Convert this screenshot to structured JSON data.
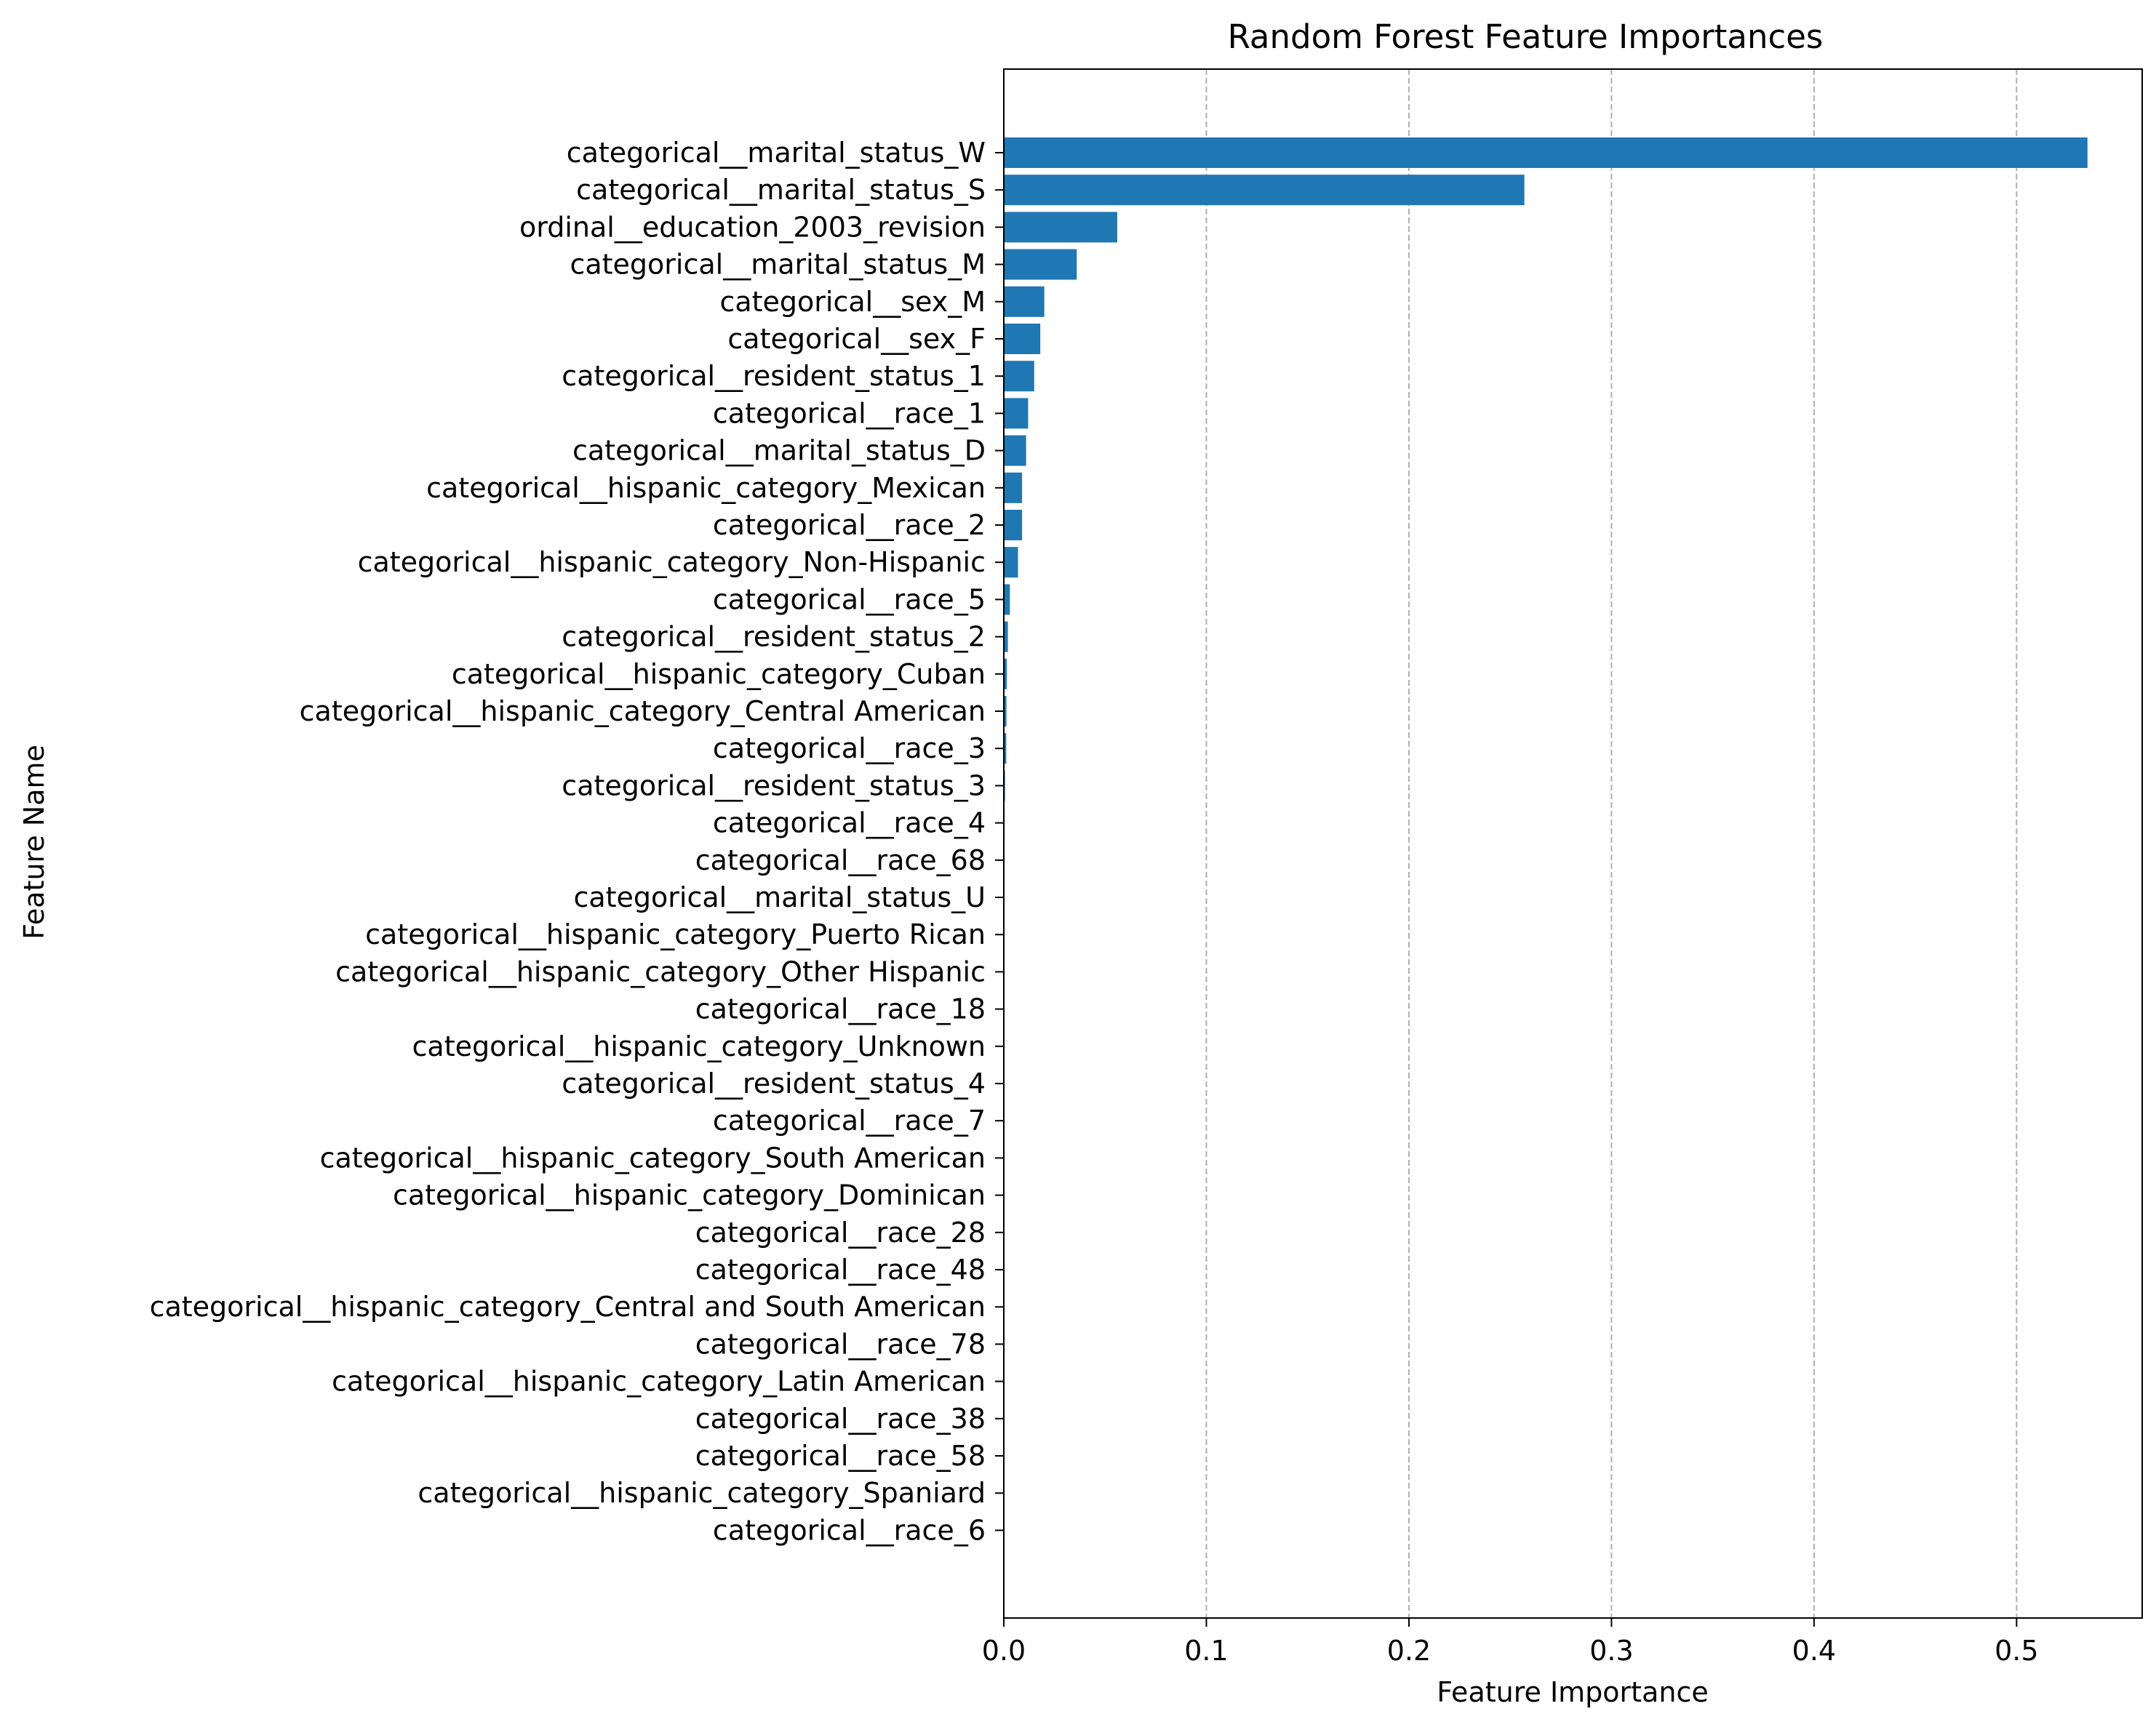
{
  "chart_data": {
    "type": "bar",
    "orientation": "horizontal",
    "title": "Random Forest Feature Importances",
    "xlabel": "Feature Importance",
    "ylabel": "Feature Name",
    "xlim": [
      0,
      0.562
    ],
    "xticks": [
      "0.0",
      "0.1",
      "0.2",
      "0.3",
      "0.4",
      "0.5"
    ],
    "grid": "x, dashed",
    "bar_color": "#1f77b4",
    "categories": [
      "categorical__marital_status_W",
      "categorical__marital_status_S",
      "ordinal__education_2003_revision",
      "categorical__marital_status_M",
      "categorical__sex_M",
      "categorical__sex_F",
      "categorical__resident_status_1",
      "categorical__race_1",
      "categorical__marital_status_D",
      "categorical__hispanic_category_Mexican",
      "categorical__race_2",
      "categorical__hispanic_category_Non-Hispanic",
      "categorical__race_5",
      "categorical__resident_status_2",
      "categorical__hispanic_category_Cuban",
      "categorical__hispanic_category_Central American",
      "categorical__race_3",
      "categorical__resident_status_3",
      "categorical__race_4",
      "categorical__race_68",
      "categorical__marital_status_U",
      "categorical__hispanic_category_Puerto Rican",
      "categorical__hispanic_category_Other Hispanic",
      "categorical__race_18",
      "categorical__hispanic_category_Unknown",
      "categorical__resident_status_4",
      "categorical__race_7",
      "categorical__hispanic_category_South American",
      "categorical__hispanic_category_Dominican",
      "categorical__race_28",
      "categorical__race_48",
      "categorical__hispanic_category_Central and South American",
      "categorical__race_78",
      "categorical__hispanic_category_Latin American",
      "categorical__race_38",
      "categorical__race_58",
      "categorical__hispanic_category_Spaniard",
      "categorical__race_6"
    ],
    "values": [
      0.535,
      0.257,
      0.056,
      0.036,
      0.02,
      0.018,
      0.015,
      0.012,
      0.011,
      0.009,
      0.009,
      0.007,
      0.003,
      0.002,
      0.0015,
      0.0013,
      0.0012,
      0.0006,
      0.0004,
      0.0003,
      0.0003,
      0.0002,
      0.0002,
      0.0002,
      0.0001,
      0.0001,
      0.0001,
      0.0001,
      0.0001,
      5e-05,
      5e-05,
      5e-05,
      4e-05,
      3e-05,
      2e-05,
      2e-05,
      1e-05,
      1e-05
    ]
  }
}
